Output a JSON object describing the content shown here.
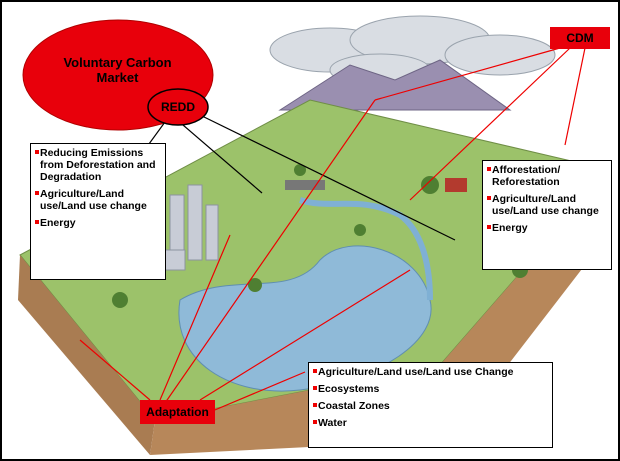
{
  "labels": {
    "voluntary_market": "Voluntary Carbon Market",
    "redd": "REDD",
    "cdm": "CDM",
    "adaptation": "Adaptation"
  },
  "boxes": [
    {
      "items": [
        "Reducing Emissions from Deforestation and Degradation",
        "Agriculture/Land use/Land use change",
        "Energy"
      ]
    },
    {
      "items": [
        "Afforestation/ Reforestation",
        "Agriculture/Land use/Land use change",
        "Energy"
      ]
    },
    {
      "items": [
        "Agriculture/Land use/Land use Change",
        "Ecosystems",
        "Coastal Zones",
        "Water"
      ]
    }
  ]
}
